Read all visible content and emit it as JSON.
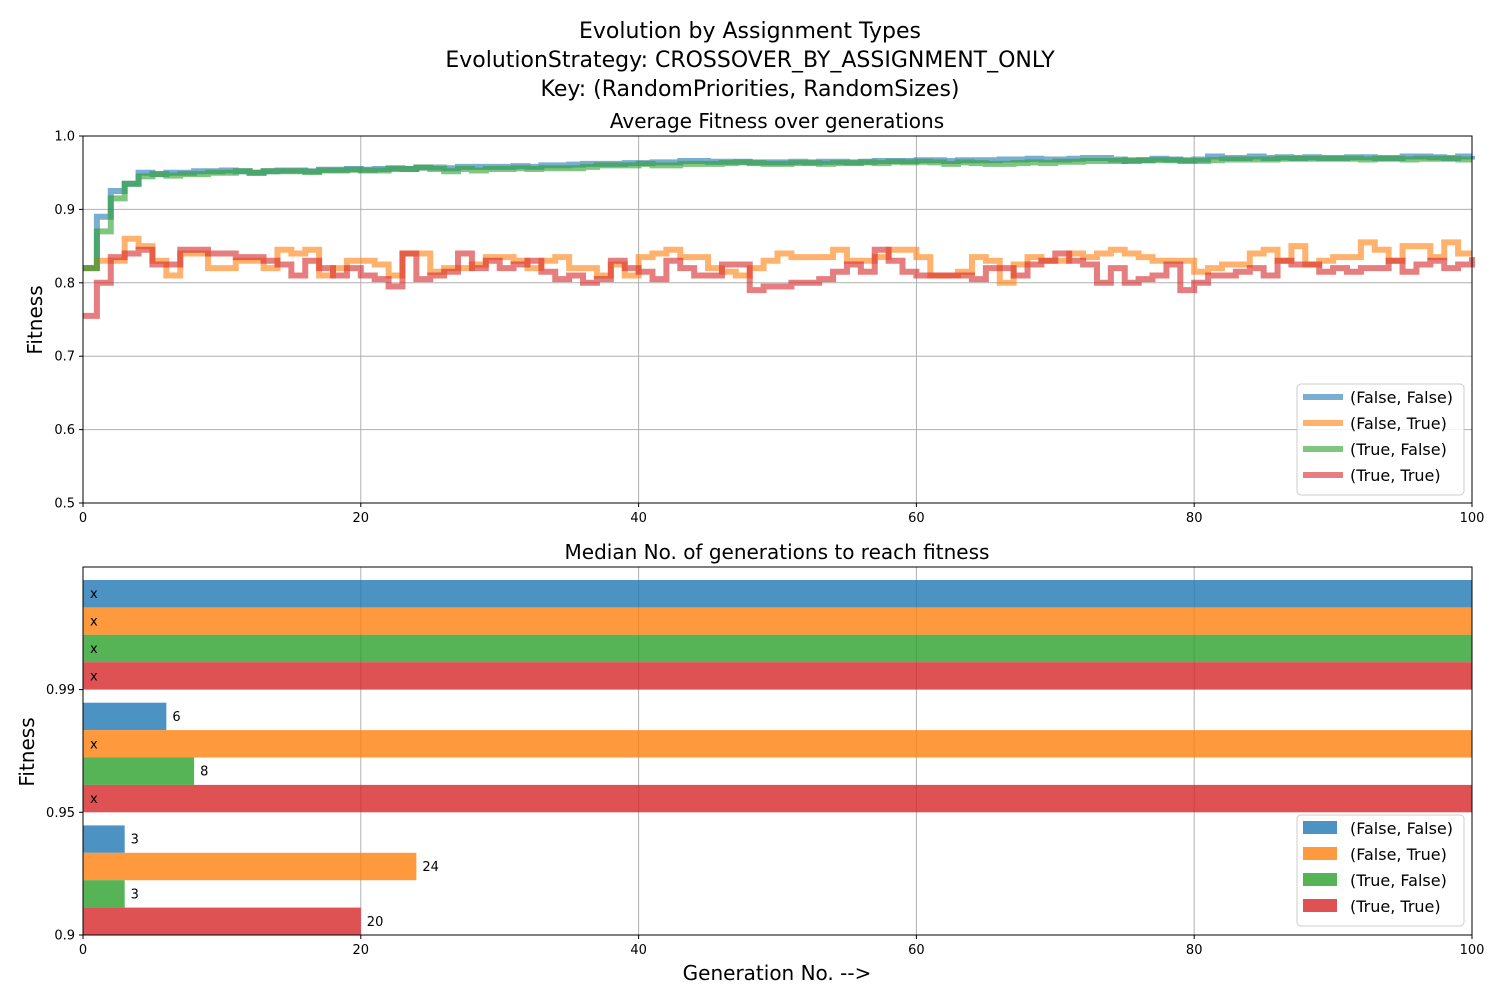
{
  "figure": {
    "title_lines": [
      "Evolution by Assignment Types",
      "EvolutionStrategy: CROSSOVER_BY_ASSIGNMENT_ONLY",
      "Key: (RandomPriorities, RandomSizes)"
    ],
    "xlabel": "Generation No. -->"
  },
  "chart_data": [
    {
      "type": "line",
      "step": true,
      "title": "Average Fitness over generations",
      "ylabel": "Fitness",
      "xlim": [
        0,
        100
      ],
      "ylim": [
        0.5,
        1.0
      ],
      "xticks": [
        "0",
        "20",
        "40",
        "60",
        "80",
        "100"
      ],
      "yticks": [
        "0.5",
        "0.6",
        "0.7",
        "0.8",
        "0.9",
        "1.0"
      ],
      "grid": true,
      "legend_position": "lower-right",
      "series": [
        {
          "name": "(False, False)",
          "color": "#1f77b4",
          "values": [
            0.82,
            0.89,
            0.925,
            0.935,
            0.95,
            0.948,
            0.95,
            0.95,
            0.952,
            0.952,
            0.953,
            0.952,
            0.95,
            0.952,
            0.953,
            0.953,
            0.952,
            0.954,
            0.954,
            0.955,
            0.954,
            0.955,
            0.956,
            0.955,
            0.957,
            0.957,
            0.956,
            0.958,
            0.958,
            0.958,
            0.958,
            0.959,
            0.958,
            0.96,
            0.96,
            0.961,
            0.962,
            0.962,
            0.962,
            0.963,
            0.963,
            0.964,
            0.964,
            0.966,
            0.966,
            0.965,
            0.965,
            0.965,
            0.964,
            0.964,
            0.964,
            0.965,
            0.964,
            0.965,
            0.965,
            0.964,
            0.965,
            0.966,
            0.966,
            0.966,
            0.967,
            0.967,
            0.966,
            0.967,
            0.967,
            0.967,
            0.968,
            0.968,
            0.969,
            0.968,
            0.968,
            0.969,
            0.97,
            0.97,
            0.968,
            0.966,
            0.967,
            0.969,
            0.968,
            0.967,
            0.968,
            0.972,
            0.97,
            0.97,
            0.972,
            0.97,
            0.971,
            0.97,
            0.971,
            0.97,
            0.97,
            0.971,
            0.971,
            0.97,
            0.97,
            0.972,
            0.972,
            0.971,
            0.97,
            0.972,
            0.973
          ]
        },
        {
          "name": "(False, True)",
          "color": "#ff7f0e",
          "values": [
            0.82,
            0.83,
            0.83,
            0.86,
            0.85,
            0.83,
            0.81,
            0.84,
            0.84,
            0.82,
            0.82,
            0.83,
            0.83,
            0.82,
            0.845,
            0.84,
            0.845,
            0.81,
            0.82,
            0.83,
            0.83,
            0.825,
            0.81,
            0.84,
            0.84,
            0.815,
            0.82,
            0.82,
            0.825,
            0.835,
            0.835,
            0.83,
            0.82,
            0.83,
            0.835,
            0.82,
            0.82,
            0.81,
            0.825,
            0.81,
            0.835,
            0.84,
            0.845,
            0.835,
            0.835,
            0.82,
            0.815,
            0.81,
            0.82,
            0.83,
            0.84,
            0.835,
            0.835,
            0.835,
            0.845,
            0.83,
            0.83,
            0.835,
            0.845,
            0.845,
            0.835,
            0.81,
            0.81,
            0.815,
            0.835,
            0.83,
            0.8,
            0.825,
            0.835,
            0.83,
            0.83,
            0.84,
            0.835,
            0.84,
            0.845,
            0.84,
            0.835,
            0.83,
            0.83,
            0.83,
            0.815,
            0.82,
            0.825,
            0.825,
            0.84,
            0.845,
            0.83,
            0.85,
            0.825,
            0.83,
            0.835,
            0.835,
            0.855,
            0.845,
            0.83,
            0.85,
            0.85,
            0.835,
            0.855,
            0.84,
            0.84
          ]
        },
        {
          "name": "(True, False)",
          "color": "#2ca02c",
          "values": [
            0.82,
            0.87,
            0.915,
            0.935,
            0.945,
            0.948,
            0.946,
            0.948,
            0.948,
            0.95,
            0.95,
            0.952,
            0.95,
            0.952,
            0.952,
            0.952,
            0.951,
            0.953,
            0.953,
            0.954,
            0.953,
            0.953,
            0.955,
            0.955,
            0.957,
            0.955,
            0.952,
            0.955,
            0.953,
            0.955,
            0.955,
            0.956,
            0.955,
            0.956,
            0.956,
            0.956,
            0.958,
            0.96,
            0.96,
            0.96,
            0.962,
            0.96,
            0.96,
            0.962,
            0.962,
            0.962,
            0.963,
            0.964,
            0.963,
            0.962,
            0.962,
            0.963,
            0.963,
            0.962,
            0.963,
            0.963,
            0.964,
            0.963,
            0.965,
            0.964,
            0.965,
            0.964,
            0.962,
            0.964,
            0.963,
            0.962,
            0.962,
            0.963,
            0.964,
            0.963,
            0.965,
            0.965,
            0.966,
            0.966,
            0.966,
            0.967,
            0.967,
            0.967,
            0.967,
            0.966,
            0.966,
            0.967,
            0.968,
            0.968,
            0.968,
            0.968,
            0.969,
            0.969,
            0.969,
            0.969,
            0.969,
            0.969,
            0.968,
            0.969,
            0.969,
            0.968,
            0.969,
            0.969,
            0.969,
            0.968,
            0.968
          ]
        },
        {
          "name": "(True, True)",
          "color": "#d62728",
          "values": [
            0.755,
            0.8,
            0.835,
            0.84,
            0.845,
            0.825,
            0.825,
            0.845,
            0.845,
            0.84,
            0.84,
            0.835,
            0.835,
            0.83,
            0.825,
            0.81,
            0.83,
            0.82,
            0.81,
            0.82,
            0.81,
            0.805,
            0.795,
            0.84,
            0.805,
            0.81,
            0.815,
            0.84,
            0.82,
            0.83,
            0.82,
            0.825,
            0.83,
            0.815,
            0.805,
            0.81,
            0.8,
            0.805,
            0.83,
            0.82,
            0.815,
            0.805,
            0.83,
            0.82,
            0.81,
            0.81,
            0.825,
            0.825,
            0.79,
            0.795,
            0.795,
            0.8,
            0.8,
            0.805,
            0.815,
            0.825,
            0.815,
            0.845,
            0.83,
            0.815,
            0.81,
            0.81,
            0.81,
            0.81,
            0.805,
            0.82,
            0.82,
            0.81,
            0.825,
            0.83,
            0.84,
            0.83,
            0.825,
            0.8,
            0.82,
            0.8,
            0.805,
            0.81,
            0.825,
            0.79,
            0.8,
            0.81,
            0.81,
            0.815,
            0.82,
            0.81,
            0.83,
            0.825,
            0.825,
            0.815,
            0.82,
            0.815,
            0.82,
            0.82,
            0.83,
            0.815,
            0.825,
            0.83,
            0.82,
            0.825,
            0.835
          ]
        }
      ]
    },
    {
      "type": "bar",
      "orientation": "horizontal",
      "title": "Median No. of generations to reach fitness",
      "ylabel": "Fitness",
      "xlim": [
        0,
        100
      ],
      "xticks": [
        "0",
        "20",
        "40",
        "60",
        "80",
        "100"
      ],
      "categories": [
        "0.9",
        "0.95",
        "0.99"
      ],
      "grid": true,
      "legend_position": "lower-right",
      "unreached_marker": "x",
      "series": [
        {
          "name": "(False, False)",
          "color": "#1f77b4",
          "values": [
            3,
            6,
            null
          ],
          "labels": [
            "3",
            "6",
            "x"
          ]
        },
        {
          "name": "(False, True)",
          "color": "#ff7f0e",
          "values": [
            24,
            null,
            null
          ],
          "labels": [
            "24",
            "x",
            "x"
          ]
        },
        {
          "name": "(True, False)",
          "color": "#2ca02c",
          "values": [
            3,
            8,
            null
          ],
          "labels": [
            "3",
            "8",
            "x"
          ]
        },
        {
          "name": "(True, True)",
          "color": "#d62728",
          "values": [
            20,
            null,
            null
          ],
          "labels": [
            "20",
            "x",
            "x"
          ]
        }
      ]
    }
  ]
}
